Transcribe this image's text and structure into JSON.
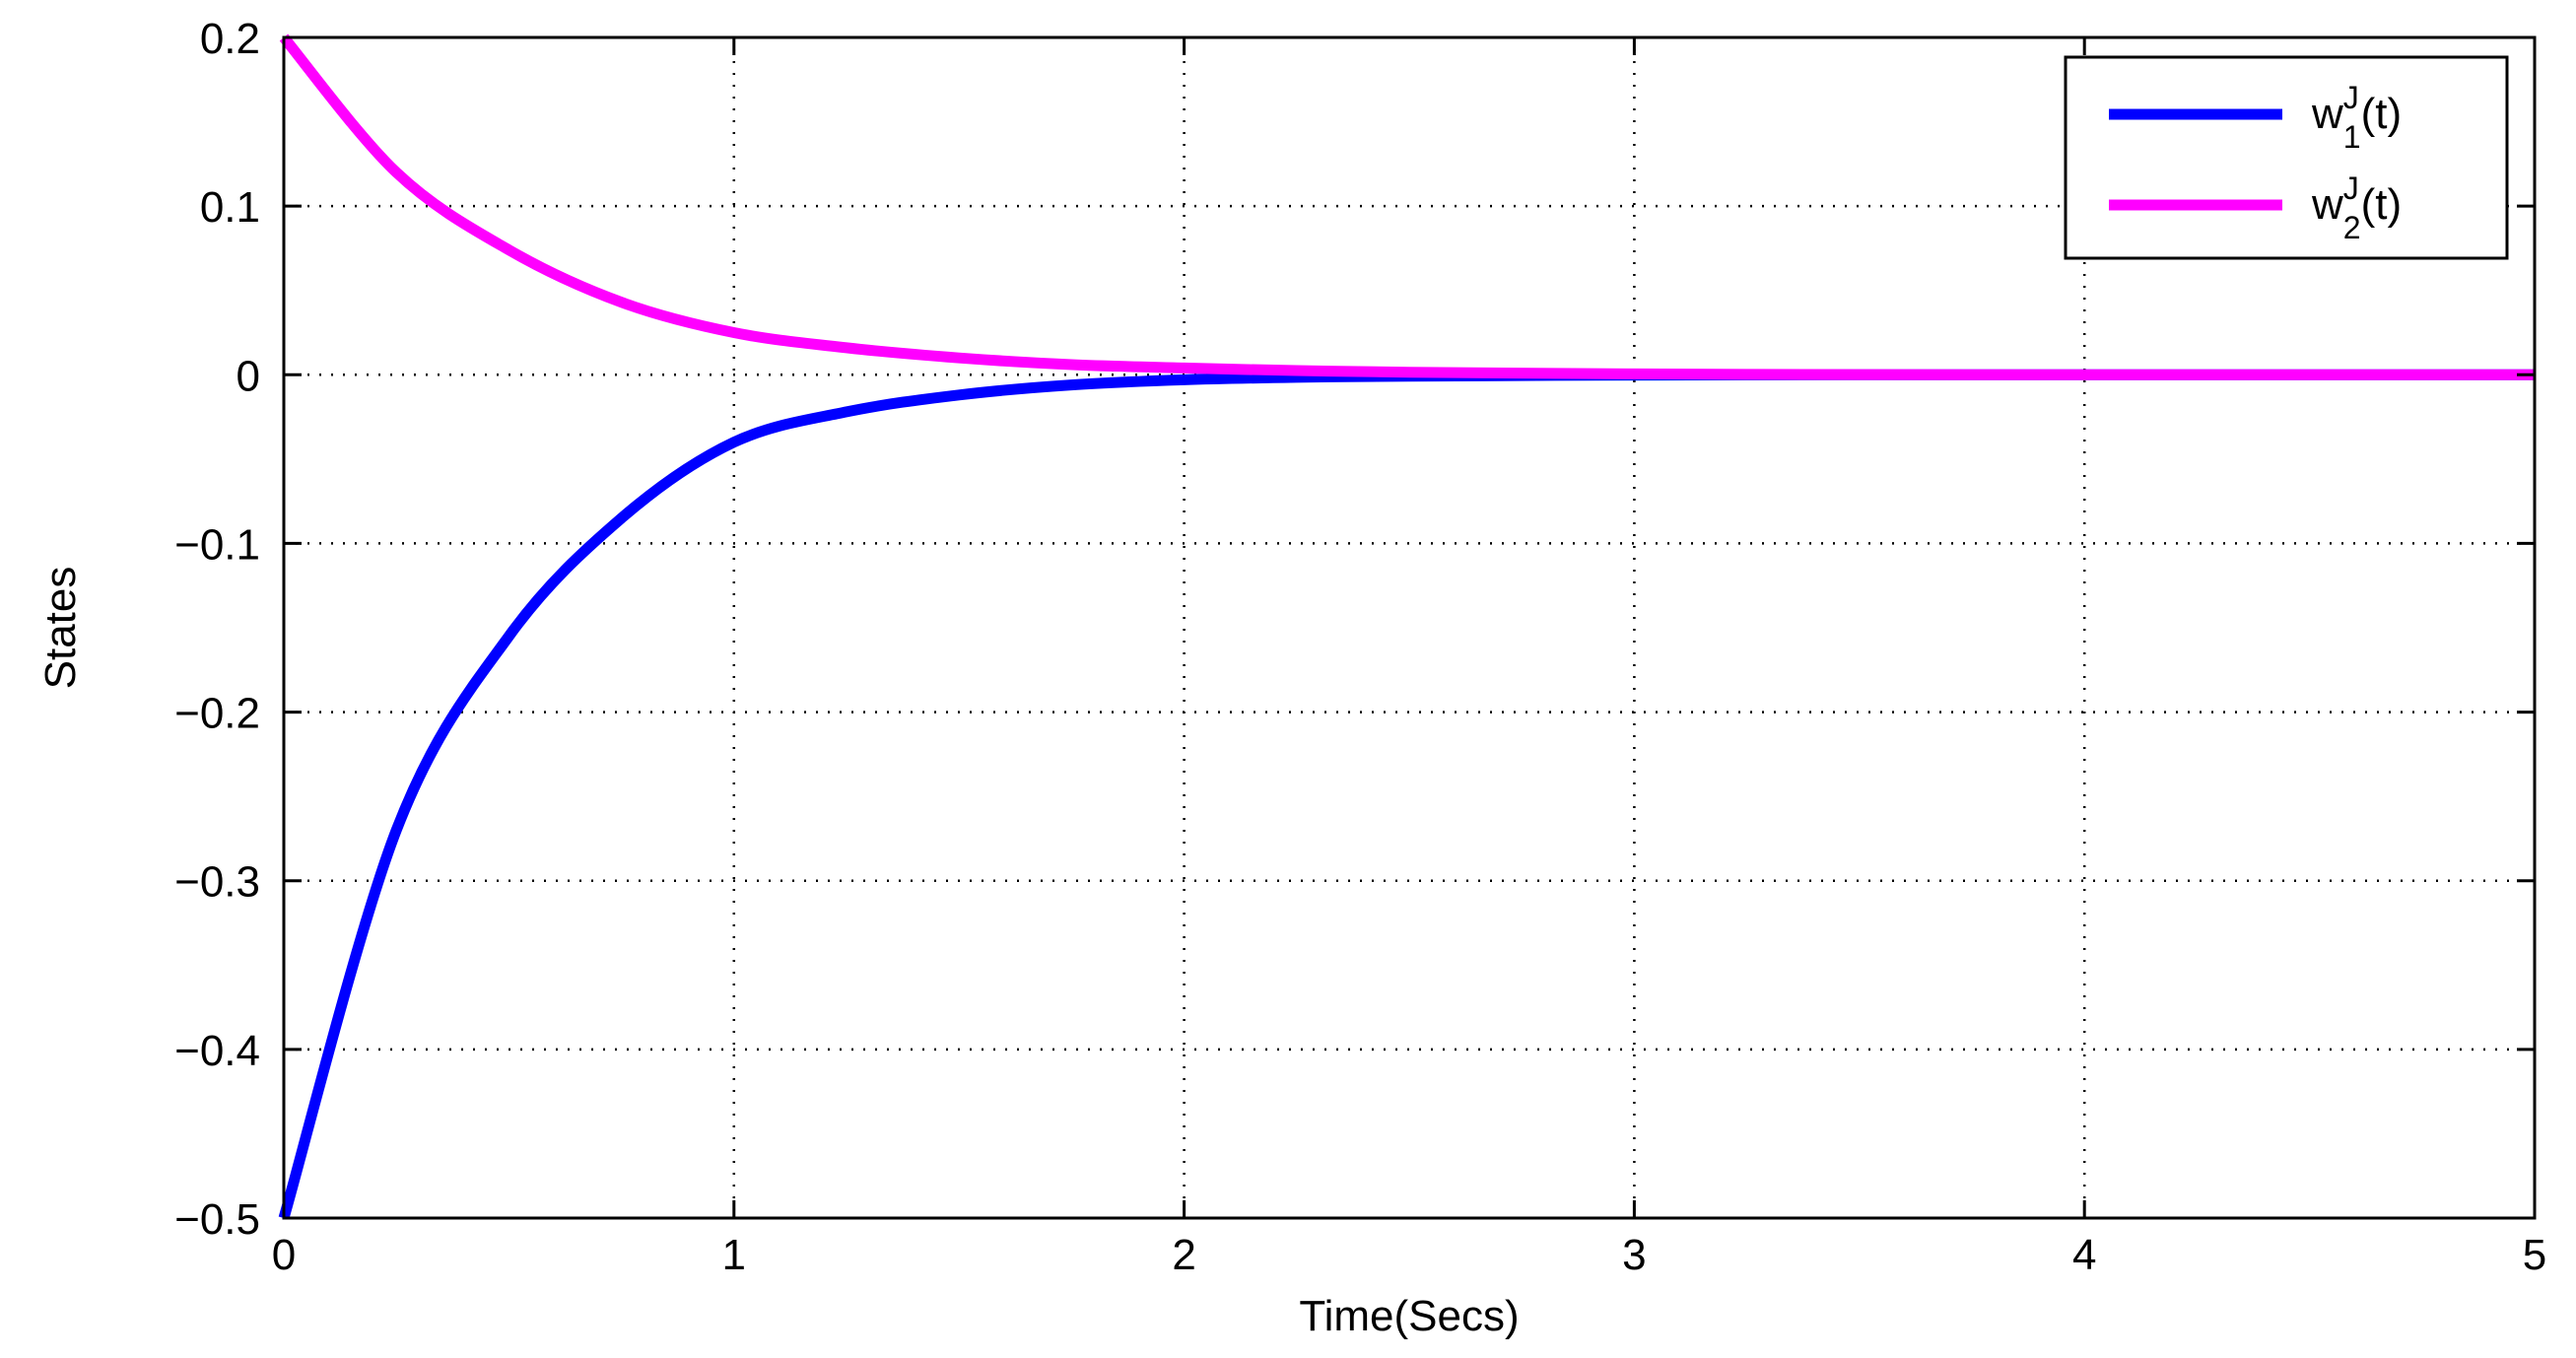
{
  "chart_data": {
    "type": "line",
    "title": "",
    "xlabel": "Time(Secs)",
    "ylabel": "States",
    "xlim": [
      0,
      5
    ],
    "ylim": [
      -0.5,
      0.2
    ],
    "xticks": [
      0,
      1,
      2,
      3,
      4,
      5
    ],
    "yticks": [
      -0.5,
      -0.4,
      -0.3,
      -0.2,
      -0.1,
      0,
      0.1,
      0.2
    ],
    "xtick_labels": [
      "0",
      "1",
      "2",
      "3",
      "4",
      "5"
    ],
    "ytick_labels": [
      "−0.5",
      "−0.4",
      "−0.3",
      "−0.2",
      "−0.1",
      "0",
      "0.1",
      "0.2"
    ],
    "grid": true,
    "legend_position": "top-right",
    "x": [
      0,
      0.25,
      0.5,
      0.75,
      1,
      1.25,
      1.5,
      1.75,
      2,
      2.25,
      2.5,
      3,
      3.5,
      4,
      4.5,
      5
    ],
    "series": [
      {
        "name": "w",
        "name_sup": "J",
        "name_sub": "1",
        "name_suffix": "(t)",
        "color": "#0000ff",
        "values": [
          -0.5,
          -0.27,
          -0.155,
          -0.085,
          -0.04,
          -0.022,
          -0.012,
          -0.006,
          -0.003,
          -0.0015,
          -0.0008,
          -0.0002,
          0,
          0,
          0,
          0
        ]
      },
      {
        "name": "w",
        "name_sup": "J",
        "name_sub": "2",
        "name_suffix": "(t)",
        "color": "#ff00ff",
        "values": [
          0.2,
          0.12,
          0.074,
          0.043,
          0.025,
          0.016,
          0.01,
          0.006,
          0.004,
          0.0025,
          0.0015,
          0.0005,
          0.0001,
          0,
          0,
          0
        ]
      }
    ]
  }
}
